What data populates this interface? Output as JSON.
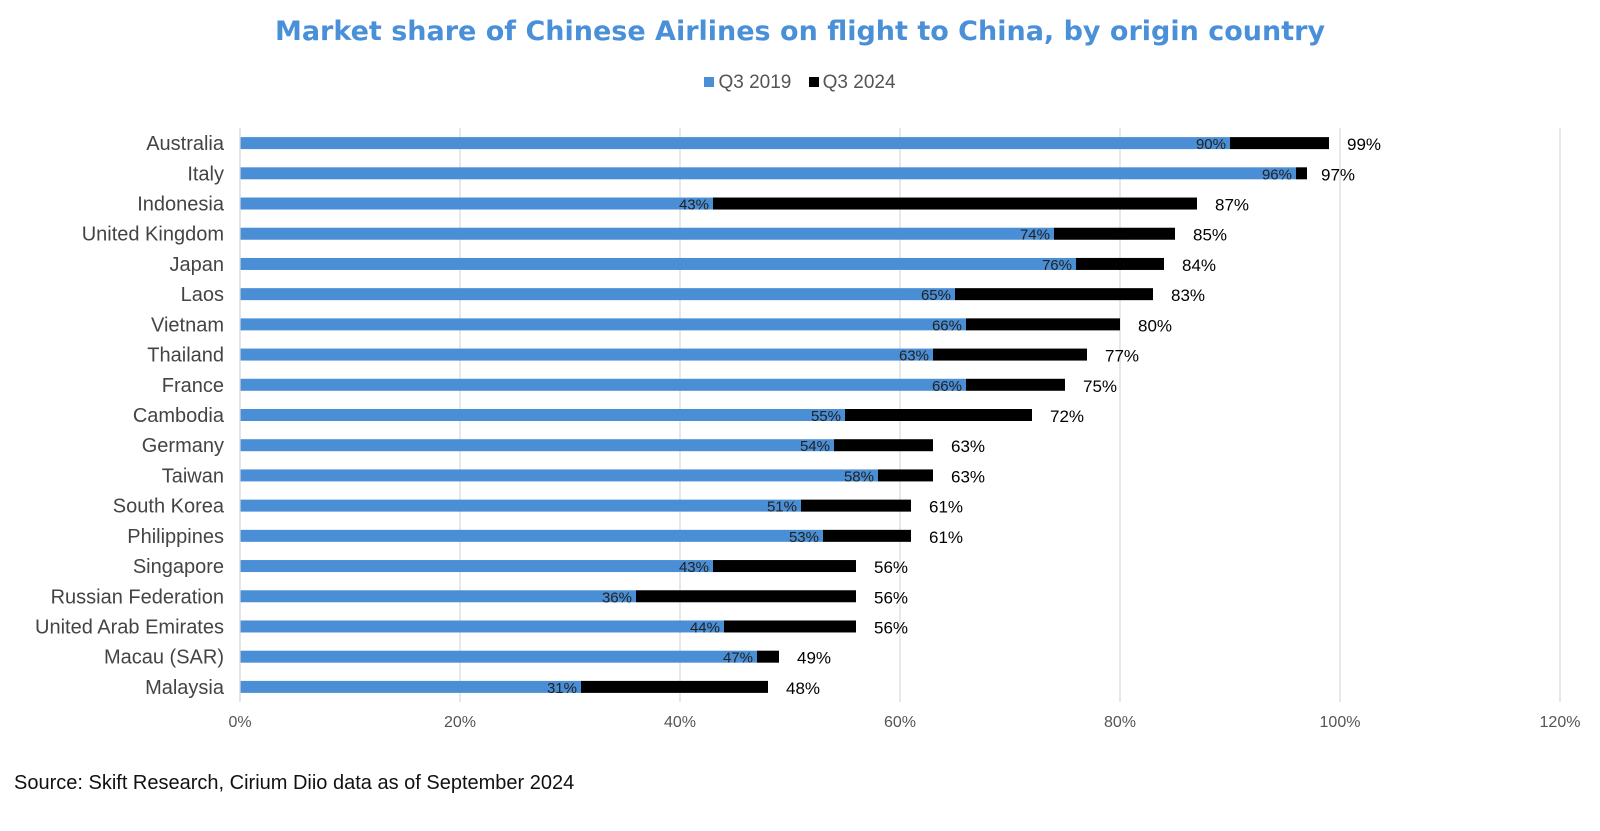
{
  "chart_data": {
    "type": "bar",
    "orientation": "horizontal",
    "title": "Market share of Chinese Airlines on flight to China, by origin country",
    "xlabel": "",
    "ylabel": "",
    "xlim": [
      0,
      1.2
    ],
    "x_ticks": [
      0,
      0.2,
      0.4,
      0.6,
      0.8,
      1.0,
      1.2
    ],
    "x_tick_labels": [
      "0%",
      "20%",
      "40%",
      "60%",
      "80%",
      "100%",
      "120%"
    ],
    "grid": true,
    "legend_position": "top",
    "categories": [
      "Australia",
      "Italy",
      "Indonesia",
      "United Kingdom",
      "Japan",
      "Laos",
      "Vietnam",
      "Thailand",
      "France",
      "Cambodia",
      "Germany",
      "Taiwan",
      "South Korea",
      "Philippines",
      "Singapore",
      "Russian Federation",
      "United Arab Emirates",
      "Macau (SAR)",
      "Malaysia"
    ],
    "series": [
      {
        "name": "Q3 2019",
        "color": "#4a8fd6",
        "values": [
          0.9,
          0.96,
          0.43,
          0.74,
          0.76,
          0.65,
          0.66,
          0.63,
          0.66,
          0.55,
          0.54,
          0.58,
          0.51,
          0.53,
          0.43,
          0.36,
          0.44,
          0.47,
          0.31
        ],
        "labels": [
          "90%",
          "96%",
          "43%",
          "74%",
          "76%",
          "65%",
          "66%",
          "63%",
          "66%",
          "55%",
          "54%",
          "58%",
          "51%",
          "53%",
          "43%",
          "36%",
          "44%",
          "47%",
          "31%"
        ]
      },
      {
        "name": "Q3 2024",
        "color": "#000000",
        "values": [
          0.99,
          0.97,
          0.87,
          0.85,
          0.84,
          0.83,
          0.8,
          0.77,
          0.75,
          0.72,
          0.63,
          0.63,
          0.61,
          0.61,
          0.56,
          0.56,
          0.56,
          0.49,
          0.48
        ],
        "labels": [
          "99%",
          "97%",
          "87%",
          "85%",
          "84%",
          "83%",
          "80%",
          "77%",
          "75%",
          "72%",
          "63%",
          "63%",
          "61%",
          "61%",
          "56%",
          "56%",
          "56%",
          "49%",
          "48%"
        ]
      }
    ]
  },
  "source_note": "Source: Skift Research, Cirium Diio data as of September 2024"
}
